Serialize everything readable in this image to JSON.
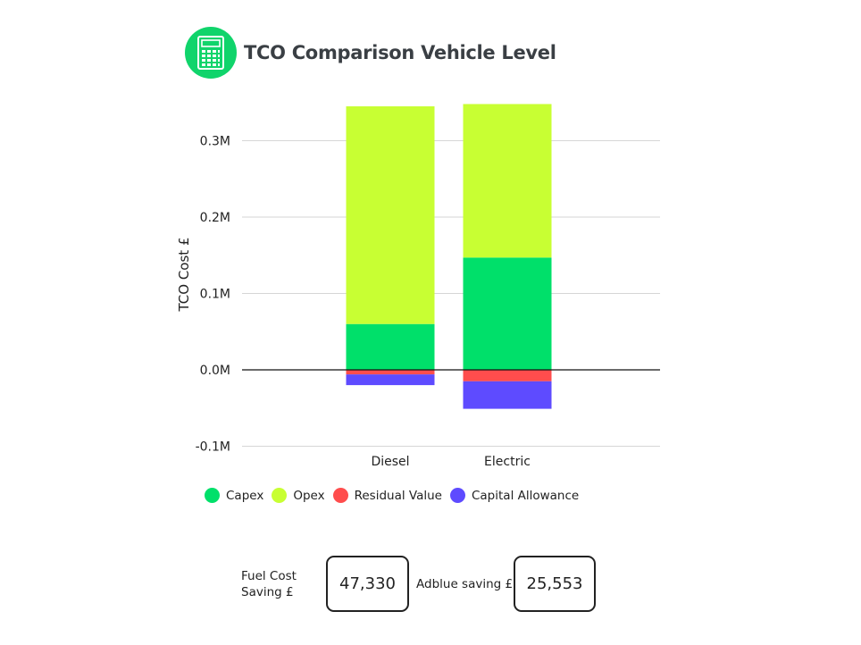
{
  "header": {
    "title": "TCO Comparison Vehicle Level",
    "icon": "calculator-icon",
    "icon_bg": "#10d46b"
  },
  "chart_data": {
    "type": "bar",
    "stacked": true,
    "categories": [
      "Diesel",
      "Electric"
    ],
    "series": [
      {
        "name": "Capex",
        "color": "#00e06a",
        "values": [
          60000,
          147000
        ]
      },
      {
        "name": "Opex",
        "color": "#c8ff33",
        "values": [
          285000,
          201000
        ]
      },
      {
        "name": "Residual Value",
        "color": "#ff4d4d",
        "values": [
          -6000,
          -15000
        ]
      },
      {
        "name": "Capital Allowance",
        "color": "#5e4bff",
        "values": [
          -14000,
          -36000
        ]
      }
    ],
    "ylabel": "TCO Cost £",
    "yticks": [
      {
        "value": 300000,
        "label": "0.3M"
      },
      {
        "value": 200000,
        "label": "0.2M"
      },
      {
        "value": 100000,
        "label": "0.1M"
      },
      {
        "value": 0,
        "label": "0.0M"
      },
      {
        "value": -100000,
        "label": "-0.1M"
      }
    ],
    "ylim": [
      -100000,
      300000
    ],
    "grid": true,
    "legend_position": "bottom"
  },
  "kpis": {
    "fuel_label": "Fuel Cost Saving £",
    "fuel_value": "47,330",
    "adblue_label": "Adblue saving £",
    "adblue_value": "25,553"
  }
}
